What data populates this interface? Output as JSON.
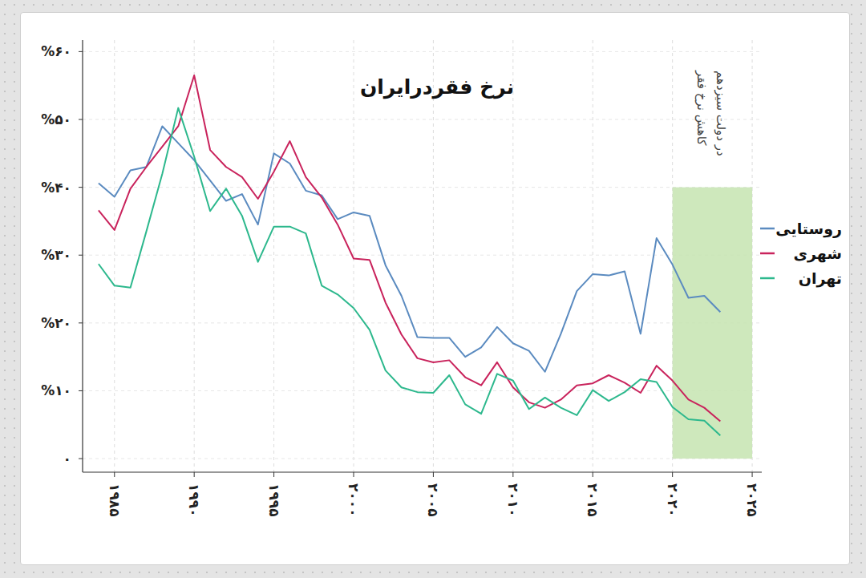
{
  "chart_data": {
    "type": "line",
    "title": "نرخ فقردرایران",
    "x": [
      1984,
      1985,
      1986,
      1987,
      1988,
      1989,
      1990,
      1991,
      1992,
      1993,
      1994,
      1995,
      1996,
      1997,
      1998,
      1999,
      2000,
      2001,
      2002,
      2003,
      2004,
      2005,
      2006,
      2007,
      2008,
      2009,
      2010,
      2011,
      2012,
      2013,
      2014,
      2015,
      2016,
      2017,
      2018,
      2019,
      2020,
      2021,
      2022,
      2023
    ],
    "series": [
      {
        "name": "روستایی",
        "color": "#5b8bc0",
        "values": [
          40.6,
          38.6,
          42.5,
          43.0,
          49.0,
          46.5,
          44.0,
          41.0,
          38.0,
          39.0,
          34.5,
          45.0,
          43.5,
          39.5,
          38.8,
          35.3,
          36.3,
          35.8,
          28.5,
          24.0,
          17.9,
          17.8,
          17.8,
          15.0,
          16.4,
          19.4,
          17.0,
          15.9,
          12.8,
          18.4,
          24.7,
          27.2,
          27.0,
          27.6,
          18.4,
          32.5,
          28.6,
          23.7,
          24.0,
          21.6
        ]
      },
      {
        "name": "شهری",
        "color": "#c9235c",
        "values": [
          36.6,
          33.7,
          39.8,
          43.0,
          46.0,
          49.0,
          56.5,
          45.5,
          43.0,
          41.5,
          38.3,
          42.3,
          46.8,
          41.5,
          38.5,
          34.5,
          29.5,
          29.3,
          23.0,
          18.3,
          14.8,
          14.2,
          14.5,
          12.0,
          10.8,
          14.2,
          10.5,
          8.3,
          7.5,
          8.7,
          10.8,
          11.1,
          12.3,
          11.2,
          9.7,
          13.7,
          11.5,
          8.7,
          7.5,
          5.5
        ]
      },
      {
        "name": "تهران",
        "color": "#2db88d",
        "values": [
          28.7,
          25.5,
          25.2,
          33.5,
          42.0,
          51.7,
          44.5,
          36.5,
          39.8,
          35.8,
          29.0,
          34.2,
          34.2,
          33.2,
          25.5,
          24.2,
          22.2,
          19.0,
          13.0,
          10.5,
          9.8,
          9.7,
          12.3,
          8.0,
          6.6,
          12.5,
          11.5,
          7.3,
          9.0,
          7.5,
          6.4,
          10.1,
          8.5,
          9.8,
          11.7,
          11.3,
          7.6,
          5.8,
          5.6,
          3.4
        ]
      }
    ],
    "xlim": [
      1983,
      2025.6
    ],
    "ylim": [
      -2,
      61.7
    ],
    "xticks": [
      {
        "value": 1985,
        "label": "۱۹۸۵"
      },
      {
        "value": 1990,
        "label": "۱۹۹۰"
      },
      {
        "value": 1995,
        "label": "۱۹۹۵"
      },
      {
        "value": 2000,
        "label": "۲۰۰۰"
      },
      {
        "value": 2005,
        "label": "۲۰۰۵"
      },
      {
        "value": 2010,
        "label": "۲۰۱۰"
      },
      {
        "value": 2015,
        "label": "۲۰۱۵"
      },
      {
        "value": 2020,
        "label": "۲۰۲۰"
      },
      {
        "value": 2025,
        "label": "۲۰۲۵"
      }
    ],
    "yticks": [
      {
        "value": 0,
        "label": "۰"
      },
      {
        "value": 10,
        "label": "%۱۰"
      },
      {
        "value": 20,
        "label": "%۲۰"
      },
      {
        "value": 30,
        "label": "%۳۰"
      },
      {
        "value": 40,
        "label": "%۴۰"
      },
      {
        "value": 50,
        "label": "%۵۰"
      },
      {
        "value": 60,
        "label": "%۶۰"
      }
    ],
    "grid": true,
    "legend": "right",
    "annotation": {
      "lines": [
        "کاهش نرخ فقر",
        "در دولت سیزدهم"
      ],
      "x": [
        2020,
        2025
      ],
      "y": [
        0,
        40
      ],
      "color": "#c5e4b0"
    }
  }
}
